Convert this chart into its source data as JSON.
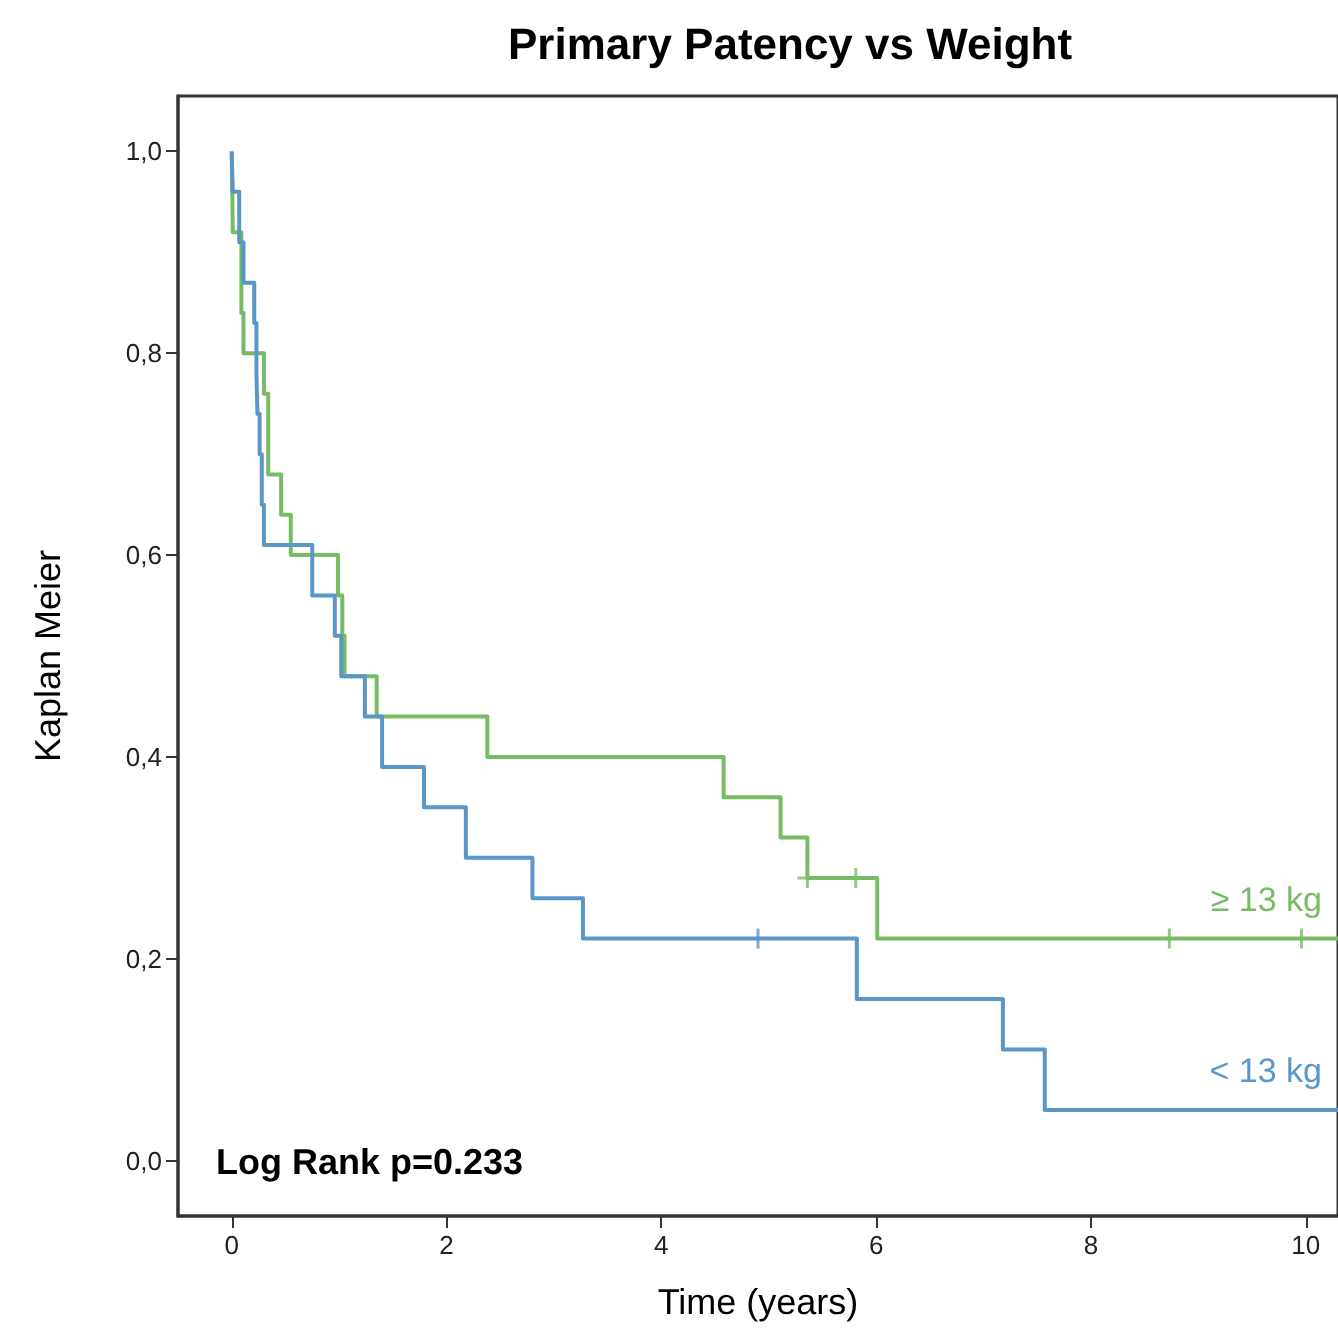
{
  "chart_data": {
    "type": "step",
    "title": "Primary Patency vs Weight",
    "xlabel": "Time (years)",
    "ylabel": "Kaplan Meier",
    "annotations": [
      "Log Rank p=0.233"
    ],
    "xlim": [
      -0.5,
      10.3
    ],
    "xticks": [
      0,
      2,
      4,
      6,
      8,
      10
    ],
    "ylim": [
      -0.055,
      1.055
    ],
    "yticks": [
      {
        "value": 0,
        "label": "0,0"
      },
      {
        "value": 0.2,
        "label": "0,2"
      },
      {
        "value": 0.4,
        "label": "0,4"
      },
      {
        "value": 0.6,
        "label": "0,6"
      },
      {
        "value": 0.8,
        "label": "0,8"
      },
      {
        "value": 1.0,
        "label": "1,0"
      }
    ],
    "grid": false,
    "series": [
      {
        "name": "≥ 13 kg",
        "color": "#77bc65",
        "x": [
          0,
          0.01,
          0.09,
          0.11,
          0.3,
          0.34,
          0.46,
          0.55,
          0.99,
          1.03,
          1.05,
          1.35,
          2.38,
          4.58,
          5.11,
          5.36,
          6.01,
          10.3
        ],
        "values": [
          1.0,
          0.92,
          0.84,
          0.8,
          0.76,
          0.68,
          0.64,
          0.6,
          0.56,
          0.52,
          0.48,
          0.44,
          0.4,
          0.36,
          0.32,
          0.28,
          0.22,
          0.22
        ]
      },
      {
        "name": "< 13 kg",
        "color": "#5a96c8",
        "x": [
          0,
          0.01,
          0.07,
          0.11,
          0.21,
          0.23,
          0.24,
          0.26,
          0.28,
          0.3,
          0.75,
          0.96,
          1.02,
          1.24,
          1.4,
          1.79,
          2.18,
          2.8,
          3.27,
          5.82,
          7.18,
          7.57,
          10.3
        ],
        "values": [
          1.0,
          0.96,
          0.91,
          0.87,
          0.83,
          0.78,
          0.74,
          0.7,
          0.65,
          0.61,
          0.56,
          0.52,
          0.48,
          0.44,
          0.39,
          0.35,
          0.3,
          0.26,
          0.22,
          0.16,
          0.11,
          0.05,
          0.05
        ]
      },
      {
        "type": "scatter",
        "marker": "cross",
        "color": "#77bc65",
        "x": [
          5.36,
          5.81,
          8.73,
          9.96
        ],
        "values": [
          0.28,
          0.28,
          0.22,
          0.22
        ]
      },
      {
        "type": "scatter",
        "marker": "cross",
        "color": "#5a96c8",
        "x": [
          4.9
        ],
        "values": [
          0.22
        ]
      }
    ]
  }
}
